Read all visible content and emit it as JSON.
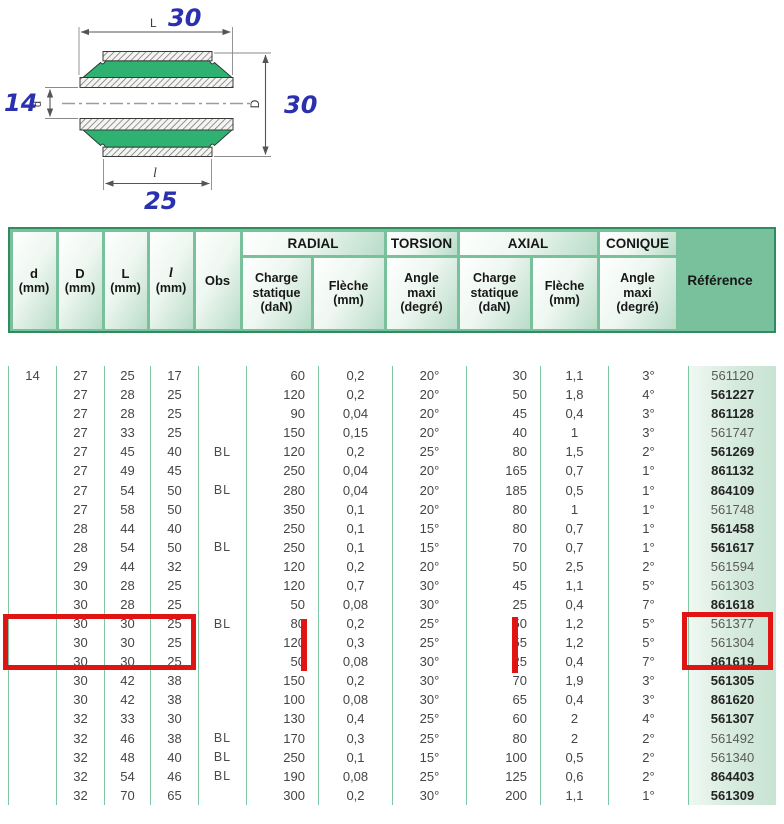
{
  "diagram": {
    "dim_top_label": "L",
    "dim_top_value": "30",
    "dim_left_label": "d",
    "dim_left_value": "14",
    "dim_right_label": "D",
    "dim_right_value": "30",
    "dim_bottom_label": "l",
    "dim_bottom_value": "25",
    "colors": {
      "rubber_green": "#2fb171",
      "dim_blue": "#2a30ae"
    }
  },
  "table": {
    "simple_headers": [
      {
        "label": "d",
        "unit": "(mm)"
      },
      {
        "label": "D",
        "unit": "(mm)"
      },
      {
        "label": "L",
        "unit": "(mm)"
      },
      {
        "label": "l",
        "unit": "(mm)"
      },
      {
        "label": "Obs",
        "unit": ""
      }
    ],
    "group_headers": {
      "radial": "RADIAL",
      "torsion": "TORSION",
      "axial": "AXIAL",
      "conique": "CONIQUE"
    },
    "sub_headers": [
      "Charge\nstatique\n(daN)",
      "Flèche\n(mm)",
      "Angle\nmaxi\n(degré)",
      "Charge\nstatique\n(daN)",
      "Flèche\n(mm)",
      "Angle\nmaxi\n(degré)"
    ],
    "reference_header": "Référence",
    "column_keys": [
      "d",
      "D",
      "L",
      "l",
      "obs",
      "radial_charge",
      "radial_fleche",
      "torsion_angle",
      "axial_charge",
      "axial_fleche",
      "conique_angle",
      "reference"
    ],
    "rows": [
      {
        "d": "14",
        "D": "27",
        "L": "25",
        "l": "17",
        "obs": "",
        "radial_charge": "60",
        "radial_fleche": "0,2",
        "torsion_angle": "20°",
        "axial_charge": "30",
        "axial_fleche": "1,1",
        "conique_angle": "3°",
        "reference": "561120",
        "bold": false
      },
      {
        "d": "",
        "D": "27",
        "L": "28",
        "l": "25",
        "obs": "",
        "radial_charge": "120",
        "radial_fleche": "0,2",
        "torsion_angle": "20°",
        "axial_charge": "50",
        "axial_fleche": "1,8",
        "conique_angle": "4°",
        "reference": "561227",
        "bold": true
      },
      {
        "d": "",
        "D": "27",
        "L": "28",
        "l": "25",
        "obs": "",
        "radial_charge": "90",
        "radial_fleche": "0,04",
        "torsion_angle": "20°",
        "axial_charge": "45",
        "axial_fleche": "0,4",
        "conique_angle": "3°",
        "reference": "861128",
        "bold": true
      },
      {
        "d": "",
        "D": "27",
        "L": "33",
        "l": "25",
        "obs": "",
        "radial_charge": "150",
        "radial_fleche": "0,15",
        "torsion_angle": "20°",
        "axial_charge": "40",
        "axial_fleche": "1",
        "conique_angle": "3°",
        "reference": "561747",
        "bold": false
      },
      {
        "d": "",
        "D": "27",
        "L": "45",
        "l": "40",
        "obs": "BL",
        "radial_charge": "120",
        "radial_fleche": "0,2",
        "torsion_angle": "25°",
        "axial_charge": "80",
        "axial_fleche": "1,5",
        "conique_angle": "2°",
        "reference": "561269",
        "bold": true
      },
      {
        "d": "",
        "D": "27",
        "L": "49",
        "l": "45",
        "obs": "",
        "radial_charge": "250",
        "radial_fleche": "0,04",
        "torsion_angle": "20°",
        "axial_charge": "165",
        "axial_fleche": "0,7",
        "conique_angle": "1°",
        "reference": "861132",
        "bold": true
      },
      {
        "d": "",
        "D": "27",
        "L": "54",
        "l": "50",
        "obs": "BL",
        "radial_charge": "280",
        "radial_fleche": "0,04",
        "torsion_angle": "20°",
        "axial_charge": "185",
        "axial_fleche": "0,5",
        "conique_angle": "1°",
        "reference": "864109",
        "bold": true
      },
      {
        "d": "",
        "D": "27",
        "L": "58",
        "l": "50",
        "obs": "",
        "radial_charge": "350",
        "radial_fleche": "0,1",
        "torsion_angle": "20°",
        "axial_charge": "80",
        "axial_fleche": "1",
        "conique_angle": "1°",
        "reference": "561748",
        "bold": false
      },
      {
        "d": "",
        "D": "28",
        "L": "44",
        "l": "40",
        "obs": "",
        "radial_charge": "250",
        "radial_fleche": "0,1",
        "torsion_angle": "15°",
        "axial_charge": "80",
        "axial_fleche": "0,7",
        "conique_angle": "1°",
        "reference": "561458",
        "bold": true
      },
      {
        "d": "",
        "D": "28",
        "L": "54",
        "l": "50",
        "obs": "BL",
        "radial_charge": "250",
        "radial_fleche": "0,1",
        "torsion_angle": "15°",
        "axial_charge": "70",
        "axial_fleche": "0,7",
        "conique_angle": "1°",
        "reference": "561617",
        "bold": true
      },
      {
        "d": "",
        "D": "29",
        "L": "44",
        "l": "32",
        "obs": "",
        "radial_charge": "120",
        "radial_fleche": "0,2",
        "torsion_angle": "20°",
        "axial_charge": "50",
        "axial_fleche": "2,5",
        "conique_angle": "2°",
        "reference": "561594",
        "bold": false
      },
      {
        "d": "",
        "D": "30",
        "L": "28",
        "l": "25",
        "obs": "",
        "radial_charge": "120",
        "radial_fleche": "0,7",
        "torsion_angle": "30°",
        "axial_charge": "45",
        "axial_fleche": "1,1",
        "conique_angle": "5°",
        "reference": "561303",
        "bold": false
      },
      {
        "d": "",
        "D": "30",
        "L": "28",
        "l": "25",
        "obs": "",
        "radial_charge": "50",
        "radial_fleche": "0,08",
        "torsion_angle": "30°",
        "axial_charge": "25",
        "axial_fleche": "0,4",
        "conique_angle": "7°",
        "reference": "861618",
        "bold": true
      },
      {
        "d": "",
        "D": "30",
        "L": "30",
        "l": "25",
        "obs": "BL",
        "radial_charge": "80",
        "radial_fleche": "0,2",
        "torsion_angle": "25°",
        "axial_charge": "50",
        "axial_fleche": "1,2",
        "conique_angle": "5°",
        "reference": "561377",
        "bold": false
      },
      {
        "d": "",
        "D": "30",
        "L": "30",
        "l": "25",
        "obs": "",
        "radial_charge": "120",
        "radial_fleche": "0,3",
        "torsion_angle": "25°",
        "axial_charge": "55",
        "axial_fleche": "1,2",
        "conique_angle": "5°",
        "reference": "561304",
        "bold": false
      },
      {
        "d": "",
        "D": "30",
        "L": "30",
        "l": "25",
        "obs": "",
        "radial_charge": "50",
        "radial_fleche": "0,08",
        "torsion_angle": "30°",
        "axial_charge": "25",
        "axial_fleche": "0,4",
        "conique_angle": "7°",
        "reference": "861619",
        "bold": true
      },
      {
        "d": "",
        "D": "30",
        "L": "42",
        "l": "38",
        "obs": "",
        "radial_charge": "150",
        "radial_fleche": "0,2",
        "torsion_angle": "30°",
        "axial_charge": "70",
        "axial_fleche": "1,9",
        "conique_angle": "3°",
        "reference": "561305",
        "bold": true
      },
      {
        "d": "",
        "D": "30",
        "L": "42",
        "l": "38",
        "obs": "",
        "radial_charge": "100",
        "radial_fleche": "0,08",
        "torsion_angle": "30°",
        "axial_charge": "65",
        "axial_fleche": "0,4",
        "conique_angle": "3°",
        "reference": "861620",
        "bold": true
      },
      {
        "d": "",
        "D": "32",
        "L": "33",
        "l": "30",
        "obs": "",
        "radial_charge": "130",
        "radial_fleche": "0,4",
        "torsion_angle": "25°",
        "axial_charge": "60",
        "axial_fleche": "2",
        "conique_angle": "4°",
        "reference": "561307",
        "bold": true
      },
      {
        "d": "",
        "D": "32",
        "L": "46",
        "l": "38",
        "obs": "BL",
        "radial_charge": "170",
        "radial_fleche": "0,3",
        "torsion_angle": "25°",
        "axial_charge": "80",
        "axial_fleche": "2",
        "conique_angle": "2°",
        "reference": "561492",
        "bold": false
      },
      {
        "d": "",
        "D": "32",
        "L": "48",
        "l": "40",
        "obs": "BL",
        "radial_charge": "250",
        "radial_fleche": "0,1",
        "torsion_angle": "15°",
        "axial_charge": "100",
        "axial_fleche": "0,5",
        "conique_angle": "2°",
        "reference": "561340",
        "bold": false
      },
      {
        "d": "",
        "D": "32",
        "L": "54",
        "l": "46",
        "obs": "BL",
        "radial_charge": "190",
        "radial_fleche": "0,08",
        "torsion_angle": "25°",
        "axial_charge": "125",
        "axial_fleche": "0,6",
        "conique_angle": "2°",
        "reference": "864403",
        "bold": true
      },
      {
        "d": "",
        "D": "32",
        "L": "70",
        "l": "65",
        "obs": "",
        "radial_charge": "300",
        "radial_fleche": "0,2",
        "torsion_angle": "30°",
        "axial_charge": "200",
        "axial_fleche": "1,1",
        "conique_angle": "1°",
        "reference": "561309",
        "bold": true
      }
    ]
  },
  "annotations": {
    "highlight_color": "#e11414"
  }
}
